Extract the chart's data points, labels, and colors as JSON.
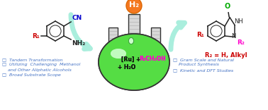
{
  "background_color": "#ffffff",
  "flask_body_color": "#55dd44",
  "flask_outline_color": "#333333",
  "flask_neck_color": "#e8e8e8",
  "h2_bubble_color": "#f47820",
  "h2_bubble_edge": "#dd6600",
  "h2_text": "H₂",
  "arrow_color": "#aaeedd",
  "arrow_edge": "#77ccaa",
  "bullet_color": "#4472c4",
  "cn_color": "#0000cc",
  "r1_color": "#cc0000",
  "r2_color": "#ff00cc",
  "o_color": "#00aa00",
  "nh_color": "#222222",
  "n_color": "#222222",
  "flask_text_ru": "[Ru] + ",
  "flask_text_r2": "R₂CH₂OH",
  "flask_text_water": "+ H₂O",
  "left_bullets": "□  Tandem Transformation\n□  Utilizing  Challenging  Methanol\n    and Other Aliphatic Alcohols\n□  Broad Substrate Scope",
  "right_bullets": "□  Gram Scale and Natural\n    Product Synthesis\n□  Kinetic and DFT Studies",
  "r2_label": "R₂ = H, Alkyl"
}
